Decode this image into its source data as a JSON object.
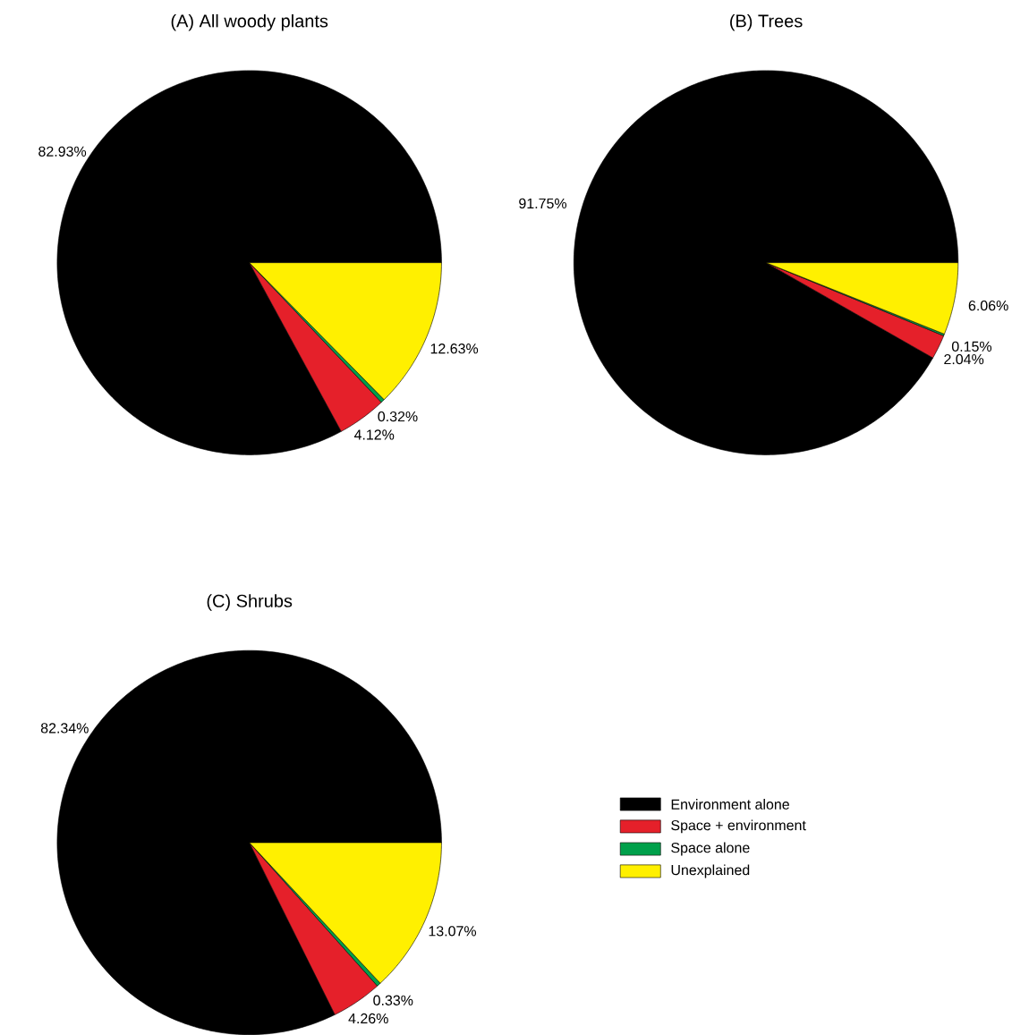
{
  "chart_data": [
    {
      "type": "pie",
      "title": "(A) All woody plants",
      "categories": [
        null,
        null,
        null,
        null
      ],
      "values": [
        82.93,
        4.12,
        0.32,
        12.63
      ],
      "colors": [
        "#000000",
        "#e5202a",
        "#00a04b",
        "#fff000"
      ],
      "value_labels": [
        "82.93%",
        "4.12%",
        "0.32%",
        "12.63%"
      ]
    },
    {
      "type": "pie",
      "title": "(B) Trees",
      "categories": [
        null,
        null,
        null,
        null
      ],
      "values": [
        91.75,
        2.04,
        0.15,
        6.06
      ],
      "colors": [
        "#000000",
        "#e5202a",
        "#00a04b",
        "#fff000"
      ],
      "value_labels": [
        "91.75%",
        "2.04%",
        "0.15%",
        "6.06%"
      ]
    },
    {
      "type": "pie",
      "title": "(C) Shrubs",
      "categories": [
        "Environment alone",
        "Space + environment",
        "Space alone",
        "Unexplained"
      ],
      "values": [
        82.34,
        4.26,
        0.33,
        13.07
      ],
      "colors": [
        "#000000",
        "#e5202a",
        "#00a04b",
        "#fff000"
      ],
      "value_labels": [
        "82.34%",
        "4.26%",
        "0.33%",
        "13.07%"
      ],
      "legend": "right"
    }
  ]
}
